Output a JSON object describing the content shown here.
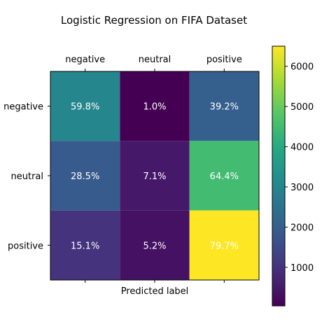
{
  "chart_data": {
    "type": "heatmap",
    "title": "Logistic Regression on FIFA Dataset",
    "xlabel": "Predicted label",
    "ylabel": "",
    "x_categories": [
      "negative",
      "neutral",
      "positive"
    ],
    "y_categories": [
      "negative",
      "neutral",
      "positive"
    ],
    "cells": [
      {
        "row": "negative",
        "col": "negative",
        "color_value": 3000,
        "label": "59.8%"
      },
      {
        "row": "negative",
        "col": "neutral",
        "color_value": 40,
        "label": "1.0%"
      },
      {
        "row": "negative",
        "col": "positive",
        "color_value": 2000,
        "label": "39.2%"
      },
      {
        "row": "neutral",
        "col": "negative",
        "color_value": 1900,
        "label": "28.5%"
      },
      {
        "row": "neutral",
        "col": "neutral",
        "color_value": 480,
        "label": "7.1%"
      },
      {
        "row": "neutral",
        "col": "positive",
        "color_value": 4500,
        "label": "64.4%"
      },
      {
        "row": "positive",
        "col": "negative",
        "color_value": 1000,
        "label": "15.1%"
      },
      {
        "row": "positive",
        "col": "neutral",
        "color_value": 340,
        "label": "5.2%"
      },
      {
        "row": "positive",
        "col": "positive",
        "color_value": 6500,
        "label": "79.7%"
      }
    ],
    "colorbar": {
      "colormap": "viridis",
      "range": [
        40,
        6500
      ],
      "ticks": [
        1000,
        2000,
        3000,
        4000,
        5000,
        6000
      ],
      "tick_labels": [
        "1000",
        "2000",
        "3000",
        "4000",
        "5000",
        "6000"
      ]
    },
    "x_axis_position": "top",
    "grid": false
  }
}
